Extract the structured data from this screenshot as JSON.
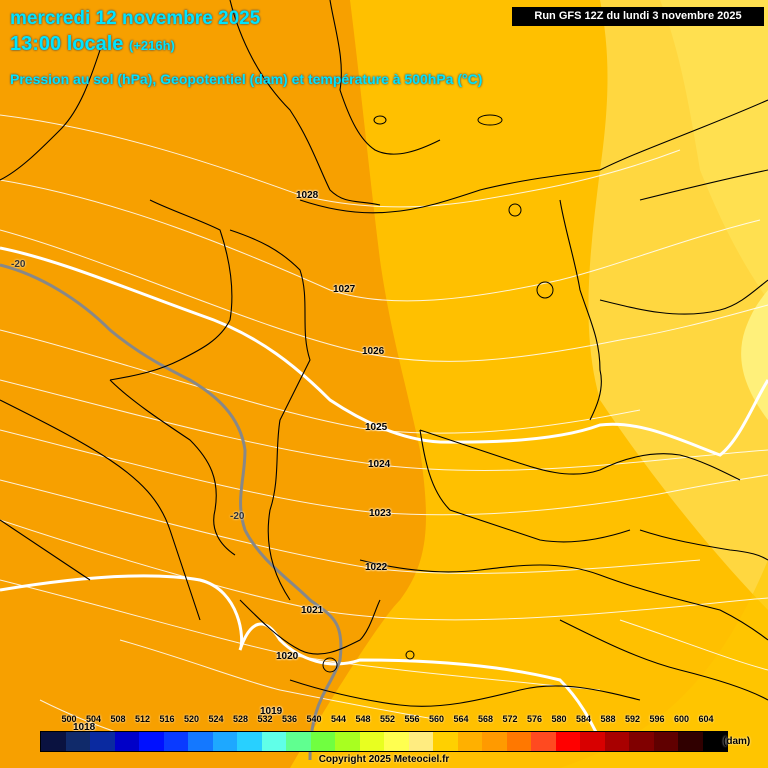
{
  "header": {
    "date_line": "mercredi 12 novembre 2025",
    "time_line": "13:00 locale",
    "offset": "(+216h)",
    "parameter": "Pression au sol (hPa), Geopotentiel (dam) et température à 500hPa (°C)"
  },
  "run_label": "Run GFS 12Z du lundi 3 novembre 2025",
  "isobars": [
    "1028",
    "1027",
    "1026",
    "1025",
    "1024",
    "1023",
    "1022",
    "1021",
    "1020",
    "1019",
    "1018"
  ],
  "temperature_labels": [
    "-20",
    "-20"
  ],
  "scale": {
    "values": [
      "500",
      "504",
      "508",
      "512",
      "516",
      "520",
      "524",
      "528",
      "532",
      "536",
      "540",
      "544",
      "548",
      "552",
      "556",
      "560",
      "564",
      "568",
      "572",
      "576",
      "580",
      "584",
      "588",
      "592",
      "596",
      "600",
      "604"
    ],
    "colors": [
      "#0a1240",
      "#102a6a",
      "#0a2aa0",
      "#0000c8",
      "#0010ff",
      "#0a3aff",
      "#1478ff",
      "#1ea8ff",
      "#28d0ff",
      "#60ffe8",
      "#60ff90",
      "#70ff40",
      "#a8ff20",
      "#e8ff20",
      "#ffff50",
      "#ffec80",
      "#ffd000",
      "#ffb000",
      "#ff9a00",
      "#ff7800",
      "#ff4a20",
      "#ff0000",
      "#d80000",
      "#a80000",
      "#800000",
      "#600000",
      "#300000",
      "#000000"
    ],
    "unit": "(dam)"
  },
  "copyright": "Copyright 2025 Meteociel.fr"
}
